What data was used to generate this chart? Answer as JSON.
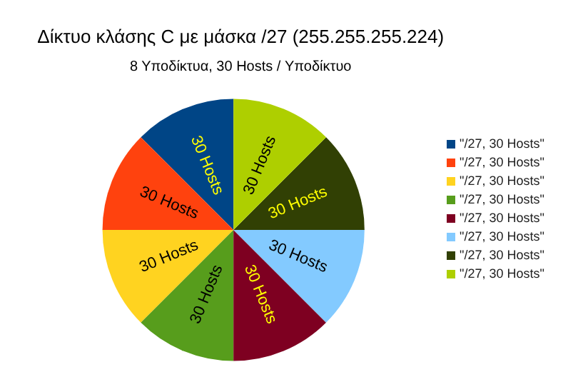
{
  "chart_data": {
    "type": "pie",
    "title": "Δίκτυο κλάσης C με μάσκα /27 (255.255.255.224)",
    "subtitle": "8 Υποδίκτυα, 30 Hosts / Υποδίκτυο",
    "categories": [
      "\"/27, 30 Hosts\"",
      "\"/27, 30 Hosts\"",
      "\"/27, 30 Hosts\"",
      "\"/27, 30 Hosts\"",
      "\"/27, 30 Hosts\"",
      "\"/27, 30 Hosts\"",
      "\"/27, 30 Hosts\"",
      "\"/27, 30 Hosts\""
    ],
    "values": [
      30,
      30,
      30,
      30,
      30,
      30,
      30,
      30
    ],
    "value_labels": [
      "30 Hosts",
      "30 Hosts",
      "30 Hosts",
      "30 Hosts",
      "30 Hosts",
      "30 Hosts",
      "30 Hosts",
      "30 Hosts"
    ],
    "colors": [
      "#004586",
      "#ff420e",
      "#ffd320",
      "#579d1c",
      "#7e0021",
      "#83caff",
      "#314004",
      "#aecf00"
    ],
    "legend": "right"
  }
}
